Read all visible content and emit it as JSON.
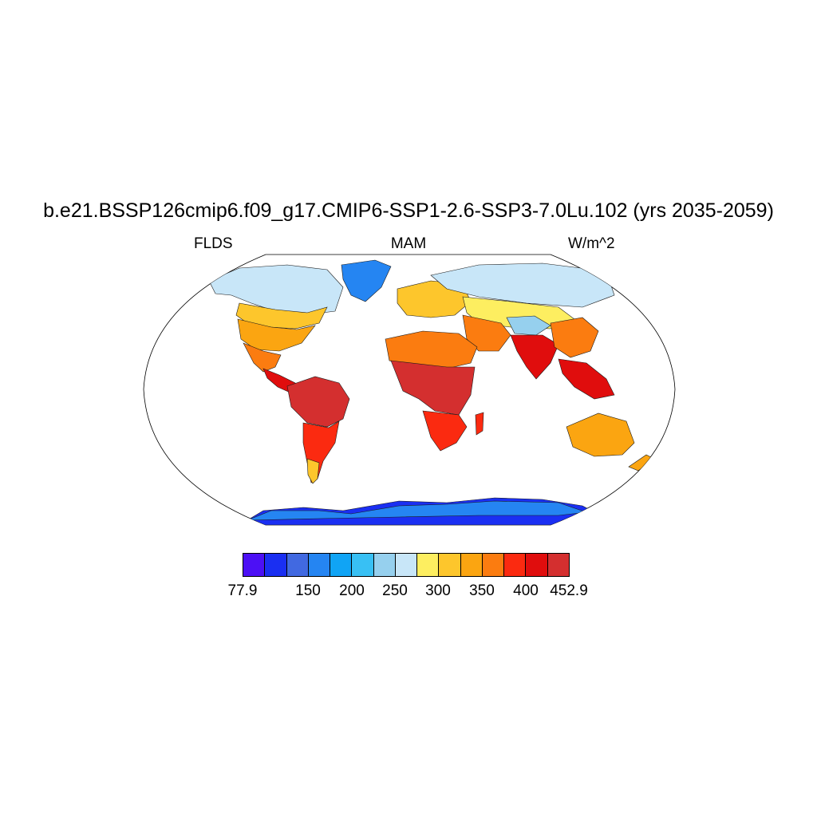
{
  "header": {
    "title": "b.e21.BSSP126cmip6.f09_g17.CMIP6-SSP1-2.6-SSP3-7.0Lu.102 (yrs 2035-2059)",
    "left": "FLDS",
    "center": "MAM",
    "right": "W/m^2"
  },
  "map": {
    "projection": "Robinson",
    "field": "FLDS",
    "season": "MAM",
    "land_only": true,
    "regions": [
      {
        "name": "Arctic / Canada",
        "band": "250-300"
      },
      {
        "name": "Greenland",
        "band": "150-250"
      },
      {
        "name": "USA",
        "band": "300-350"
      },
      {
        "name": "Central America",
        "band": "400-452.9"
      },
      {
        "name": "Amazon",
        "band": "400-452.9"
      },
      {
        "name": "Sahara",
        "band": "350-400"
      },
      {
        "name": "Central Africa",
        "band": "400-452.9"
      },
      {
        "name": "Europe",
        "band": "300-350"
      },
      {
        "name": "Siberia",
        "band": "250-300"
      },
      {
        "name": "Tibet",
        "band": "150-250"
      },
      {
        "name": "South Asia",
        "band": "400-452.9"
      },
      {
        "name": "Australia",
        "band": "350-400"
      },
      {
        "name": "Antarctica",
        "band": "77.9-200"
      }
    ]
  },
  "colorbar": {
    "colors": [
      "#4c10f5",
      "#1a2ff2",
      "#4169e1",
      "#2585f2",
      "#10a4f5",
      "#38c0f4",
      "#96d0ee",
      "#c8e6f8",
      "#fdee60",
      "#fdc62c",
      "#fba511",
      "#fb7c10",
      "#fb2a10",
      "#e00d0d",
      "#d42f2f"
    ],
    "labels": [
      "77.9",
      "150",
      "200",
      "250",
      "300",
      "350",
      "400",
      "452.9"
    ]
  }
}
